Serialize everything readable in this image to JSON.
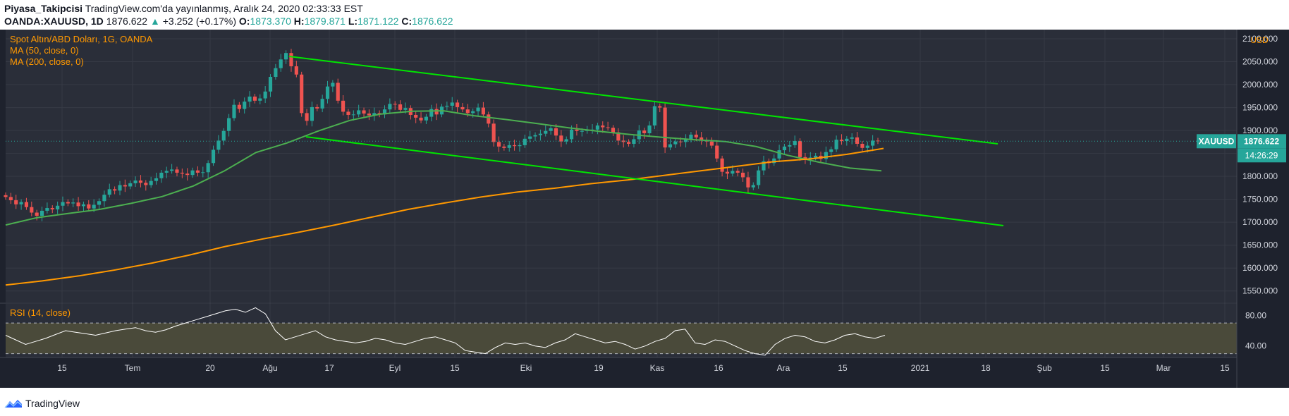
{
  "header": {
    "author": "Piyasa_Takipcisi",
    "published": "TradingView.com'da yayınlanmış, Aralık 24, 2020 02:33:33 EST",
    "symbol": "OANDA:XAUUSD, 1D",
    "last": "1876.622",
    "change": "+3.252 (+0.17%)",
    "open_label": "O:",
    "open": "1873.370",
    "high_label": "H:",
    "high": "1879.871",
    "low_label": "L:",
    "low": "1871.122",
    "close_label": "C:",
    "close": "1876.622"
  },
  "legend": {
    "title": "Spot Altın/ABD Doları, 1G, OANDA",
    "ma50": "MA (50, close, 0)",
    "ma200": "MA (200, close, 0)",
    "rsi": "RSI (14, close)"
  },
  "price_axis": {
    "currency": "USD",
    "labels": [
      "2100.000",
      "2050.000",
      "2000.000",
      "1950.000",
      "1900.000",
      "1850.000",
      "1800.000",
      "1750.000",
      "1700.000",
      "1650.000",
      "1600.000",
      "1550.000"
    ],
    "symbol_tag": "XAUUSD",
    "price_tag": "1876.622",
    "countdown": "14:26:29"
  },
  "rsi_axis": {
    "labels": [
      "80.00",
      "40.00"
    ]
  },
  "time_axis": {
    "labels": [
      "15",
      "Tem",
      "20",
      "Ağu",
      "17",
      "Eyl",
      "15",
      "Eki",
      "19",
      "Kas",
      "16",
      "Ara",
      "15",
      "2021",
      "18",
      "Şub",
      "15",
      "Mar",
      "15"
    ]
  },
  "footer": {
    "brand": "TradingView"
  },
  "colors": {
    "background": "#2a2e39",
    "up": "#26a69a",
    "down": "#ef5350",
    "ma50": "#4caf50",
    "ma200": "#ff9800",
    "channel": "#00e600",
    "rsi_band": "#4a4a3a"
  },
  "chart_data": {
    "type": "candlestick",
    "title": "Spot Altın/ABD Doları, 1G, OANDA",
    "y_range": [
      1525,
      2120
    ],
    "rsi_range": [
      25,
      95
    ],
    "start_date": "2020-06-29",
    "last_date": "2020-12-24",
    "last_close": 1876.622,
    "ohlc_close": [
      1755,
      1748,
      1739,
      1744,
      1733,
      1721,
      1714,
      1725,
      1731,
      1728,
      1736,
      1744,
      1741,
      1743,
      1735,
      1739,
      1730,
      1738,
      1746,
      1760,
      1772,
      1769,
      1781,
      1778,
      1785,
      1791,
      1786,
      1781,
      1790,
      1796,
      1808,
      1812,
      1815,
      1808,
      1806,
      1803,
      1813,
      1808,
      1809,
      1829,
      1858,
      1878,
      1899,
      1927,
      1956,
      1947,
      1963,
      1974,
      1965,
      1970,
      1985,
      2017,
      2036,
      2055,
      2069,
      2040,
      2022,
      1938,
      1921,
      1951,
      1948,
      1969,
      1996,
      2004,
      1965,
      1941,
      1934,
      1935,
      1944,
      1937,
      1933,
      1938,
      1935,
      1946,
      1958,
      1957,
      1945,
      1949,
      1934,
      1928,
      1922,
      1930,
      1947,
      1935,
      1952,
      1954,
      1961,
      1951,
      1946,
      1938,
      1942,
      1950,
      1935,
      1915,
      1875,
      1865,
      1862,
      1868,
      1866,
      1868,
      1882,
      1887,
      1890,
      1893,
      1899,
      1905,
      1889,
      1876,
      1881,
      1902,
      1899,
      1899,
      1901,
      1902,
      1911,
      1907,
      1906,
      1896,
      1878,
      1875,
      1871,
      1881,
      1900,
      1894,
      1911,
      1953,
      1950,
      1863,
      1870,
      1876,
      1875,
      1880,
      1891,
      1885,
      1879,
      1876,
      1867,
      1839,
      1810,
      1806,
      1812,
      1808,
      1798,
      1776,
      1781,
      1813,
      1833,
      1829,
      1839,
      1857,
      1865,
      1868,
      1877,
      1842,
      1837,
      1841,
      1845,
      1838,
      1853,
      1859,
      1880,
      1877,
      1882,
      1885,
      1871,
      1862,
      1867,
      1878,
      1876.622
    ],
    "ma50": [
      1694,
      1710,
      1719,
      1728,
      1741,
      1756,
      1779,
      1812,
      1852,
      1873,
      1899,
      1922,
      1936,
      1942,
      1943,
      1932,
      1924,
      1915,
      1906,
      1898,
      1891,
      1885,
      1880,
      1876,
      1865,
      1846,
      1831,
      1818,
      1812
    ],
    "ma200": [
      1563,
      1572,
      1583,
      1596,
      1611,
      1628,
      1647,
      1663,
      1678,
      1694,
      1711,
      1728,
      1742,
      1755,
      1766,
      1774,
      1784,
      1792,
      1802,
      1812,
      1822,
      1832,
      1838,
      1848,
      1861
    ],
    "rsi": [
      54,
      48,
      42,
      46,
      50,
      55,
      60,
      58,
      56,
      54,
      57,
      60,
      62,
      64,
      60,
      58,
      61,
      66,
      70,
      74,
      78,
      82,
      86,
      88,
      84,
      90,
      82,
      60,
      48,
      52,
      56,
      60,
      52,
      48,
      46,
      44,
      46,
      50,
      48,
      44,
      42,
      46,
      50,
      52,
      48,
      44,
      34,
      32,
      30,
      38,
      44,
      42,
      44,
      40,
      38,
      44,
      48,
      56,
      52,
      48,
      44,
      46,
      42,
      36,
      40,
      46,
      50,
      60,
      62,
      44,
      42,
      48,
      46,
      40,
      34,
      30,
      28,
      42,
      50,
      54,
      52,
      46,
      44,
      48,
      54,
      56,
      52,
      50,
      54
    ]
  }
}
